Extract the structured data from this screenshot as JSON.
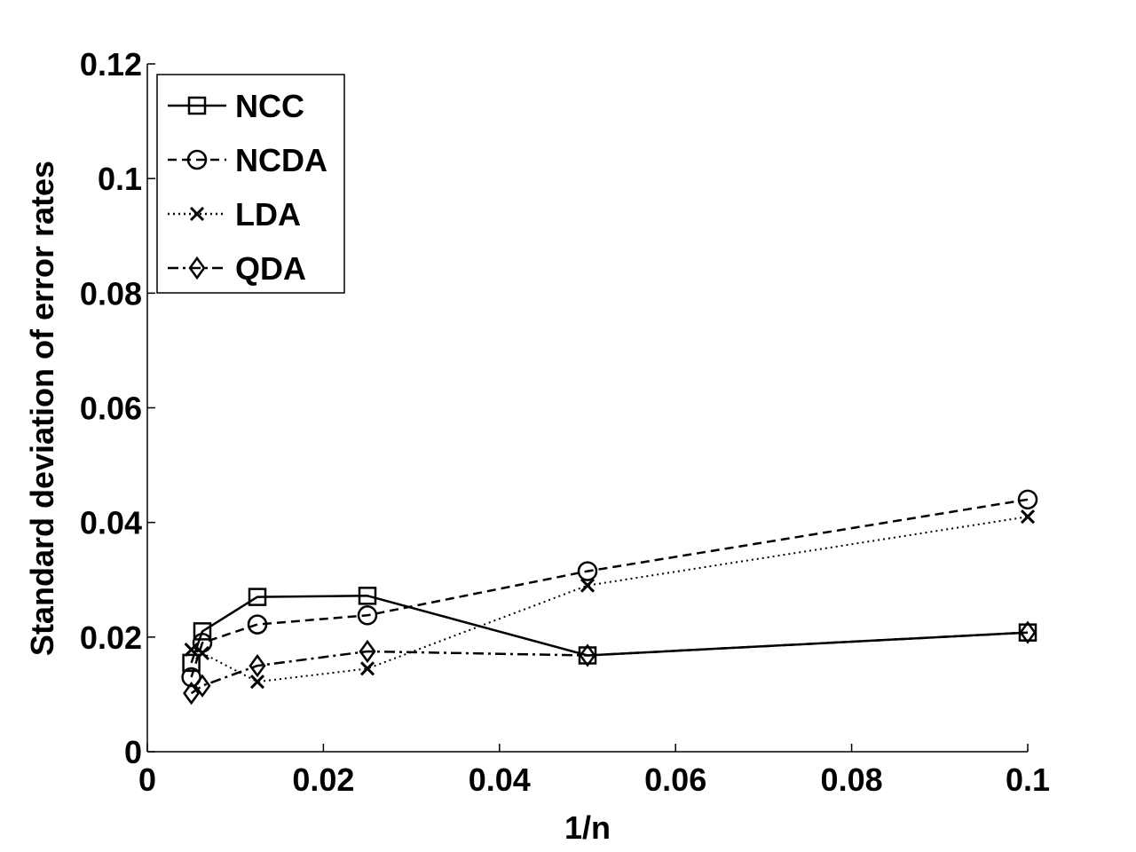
{
  "chart_data": {
    "type": "line",
    "title": "",
    "xlabel": "1/n",
    "ylabel": "Standard deviation of  error rates",
    "xlim": [
      0,
      0.1
    ],
    "ylim": [
      0,
      0.12
    ],
    "xticks": [
      0,
      0.02,
      0.04,
      0.06,
      0.08,
      0.1
    ],
    "xtick_labels": [
      "0",
      "0.02",
      "0.04",
      "0.06",
      "0.08",
      "0.1"
    ],
    "yticks": [
      0,
      0.02,
      0.04,
      0.06,
      0.08,
      0.1,
      0.12
    ],
    "ytick_labels": [
      "0",
      "0.02",
      "0.04",
      "0.06",
      "0.08",
      "0.1",
      "0.12"
    ],
    "grid": false,
    "legend_position": "top-left",
    "x": [
      0.005,
      0.00625,
      0.0125,
      0.025,
      0.05,
      0.1
    ],
    "series": [
      {
        "name": "NCC",
        "marker": "square",
        "linestyle": "solid",
        "values": [
          0.0155,
          0.021,
          0.027,
          0.0272,
          0.0168,
          0.0208
        ]
      },
      {
        "name": "NCDA",
        "marker": "circle",
        "linestyle": "dashed",
        "values": [
          0.013,
          0.019,
          0.0222,
          0.0238,
          0.0315,
          0.044
        ]
      },
      {
        "name": "LDA",
        "marker": "x",
        "linestyle": "dotted",
        "values": [
          0.0178,
          0.0172,
          0.0122,
          0.0145,
          0.029,
          0.041
        ]
      },
      {
        "name": "QDA",
        "marker": "diamond",
        "linestyle": "dashdot",
        "values": [
          0.0102,
          0.0115,
          0.015,
          0.0175,
          0.0168,
          0.0208
        ]
      }
    ]
  }
}
